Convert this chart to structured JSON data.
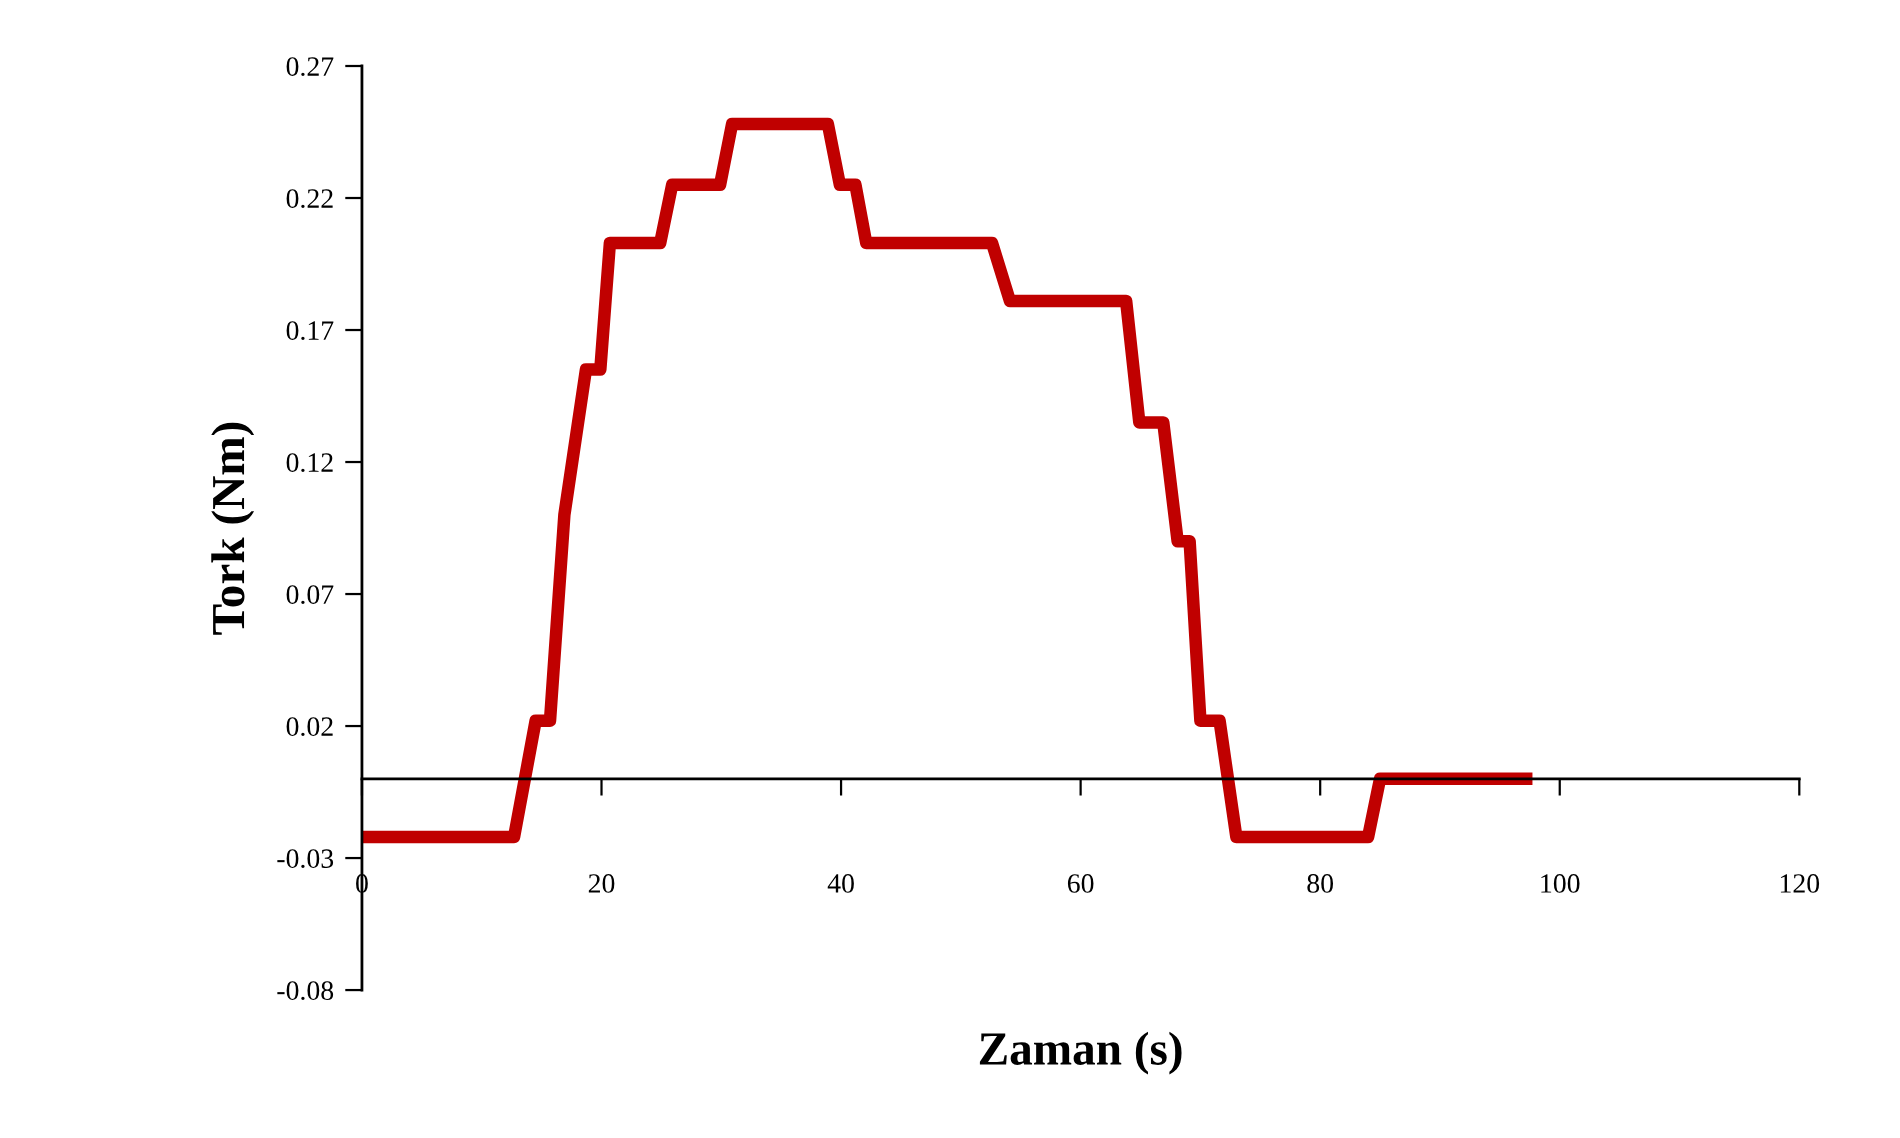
{
  "chart_data": {
    "type": "line",
    "xlabel": "Zaman (s)",
    "ylabel": "Tork (Nm)",
    "xlim": [
      0,
      120
    ],
    "xticks": [
      0,
      20,
      40,
      60,
      80,
      100,
      120
    ],
    "ylim": [
      -0.08,
      0.27
    ],
    "yticks": [
      -0.08,
      -0.03,
      0.02,
      0.07,
      0.12,
      0.17,
      0.22,
      0.27
    ],
    "grid": false,
    "legend": false,
    "marker": "none",
    "line_style": "solid",
    "series": [
      {
        "color": "#c00000",
        "x": [
          0,
          12.7,
          14.5,
          15.7,
          16.9,
          18.7,
          19.9,
          20.7,
          24.9,
          25.9,
          29.9,
          30.9,
          38.9,
          39.9,
          41.2,
          42.1,
          52.6,
          54.1,
          63.8,
          64.9,
          66.9,
          68.1,
          69.1,
          70,
          71.6,
          73,
          84,
          85,
          97.2
        ],
        "values": [
          -0.022,
          -0.022,
          0.022,
          0.022,
          0.1,
          0.155,
          0.155,
          0.203,
          0.203,
          0.225,
          0.225,
          0.248,
          0.248,
          0.225,
          0.225,
          0.203,
          0.203,
          0.181,
          0.181,
          0.135,
          0.135,
          0.09,
          0.09,
          0.022,
          0.022,
          -0.022,
          -0.022,
          0,
          0
        ]
      }
    ]
  }
}
